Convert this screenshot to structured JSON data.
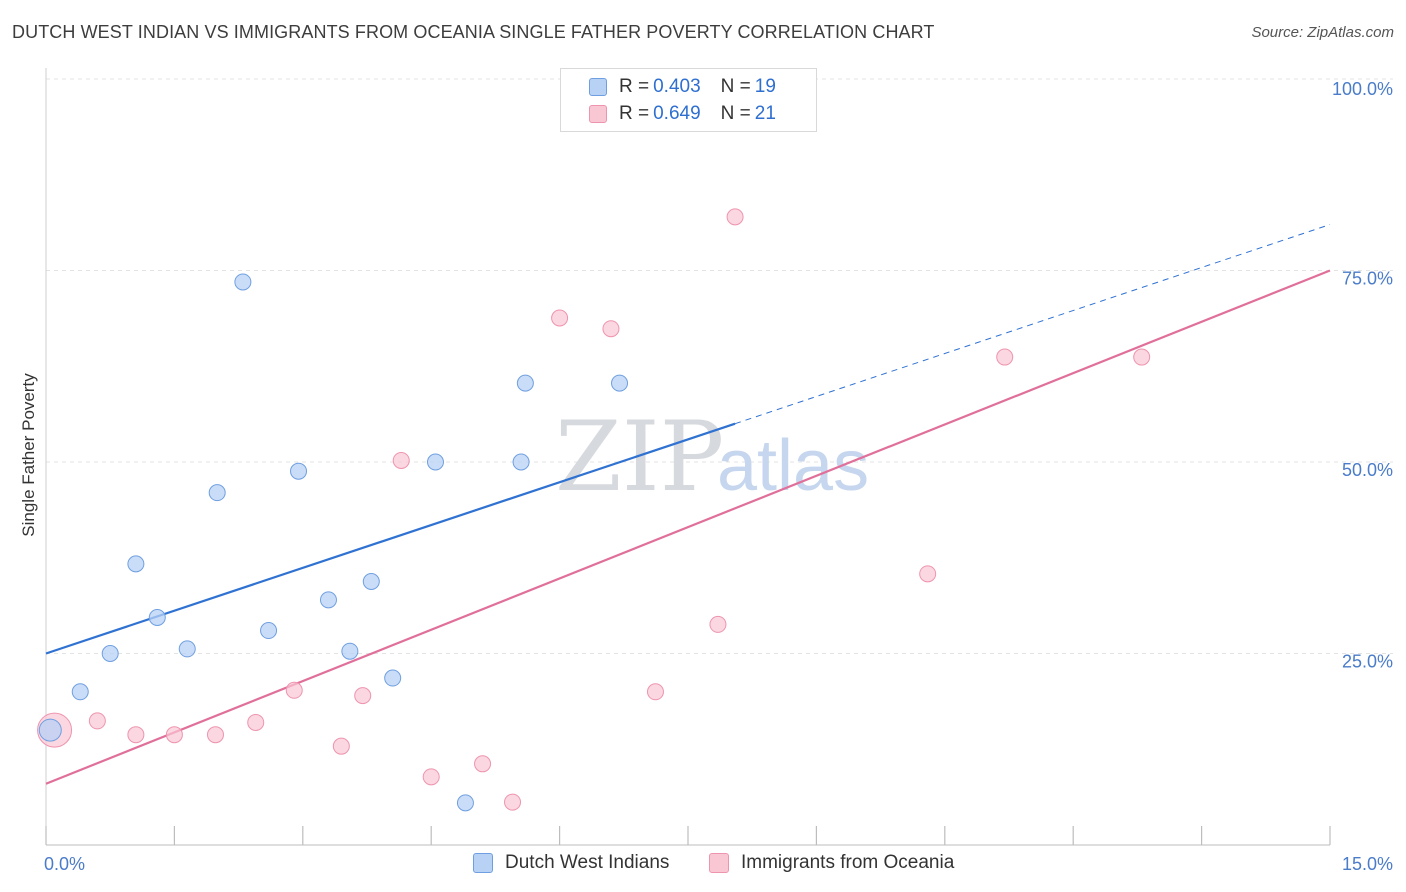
{
  "header": {
    "title": "DUTCH WEST INDIAN VS IMMIGRANTS FROM OCEANIA SINGLE FATHER POVERTY CORRELATION CHART",
    "source": "Source: ZipAtlas.com"
  },
  "legend": {
    "rows": [
      {
        "r_label": "R = ",
        "r_value": "0.403",
        "n_label": "N = ",
        "n_value": "19"
      },
      {
        "r_label": "R = ",
        "r_value": "0.649",
        "n_label": "N = ",
        "n_value": "21"
      }
    ]
  },
  "bottom_legend": {
    "series1": "Dutch West Indians",
    "series2": "Immigrants from Oceania"
  },
  "colors": {
    "blue_fill": "#b8d2f5",
    "blue_stroke": "#6f9fe0",
    "blue_line": "#2f72d2",
    "pink_fill": "#f9c6d4",
    "pink_stroke": "#ee94ae",
    "pink_line": "#e0709a",
    "tick_text": "#4a7cc9",
    "grid": "#e3e3e3"
  },
  "chart_data": {
    "type": "scatter",
    "xlabel": "",
    "ylabel": "Single Father Poverty",
    "xlim": [
      0,
      15
    ],
    "ylim": [
      0,
      100
    ],
    "x_tick_labels": [
      "0.0%",
      "15.0%"
    ],
    "y_tick_labels": [
      "25.0%",
      "50.0%",
      "75.0%",
      "100.0%"
    ],
    "y_ticks": [
      25,
      50,
      75,
      100
    ],
    "grid": true,
    "legend_position": "top-center",
    "watermark": {
      "zip": "ZIP",
      "atlas": "atlas"
    },
    "series": [
      {
        "name": "Dutch West Indians",
        "r": 0.403,
        "n": 19,
        "points": [
          [
            0.05,
            15.0
          ],
          [
            0.4,
            20.0
          ],
          [
            0.75,
            25.0
          ],
          [
            1.05,
            36.7
          ],
          [
            1.3,
            29.7
          ],
          [
            1.65,
            25.6
          ],
          [
            2.0,
            46.0
          ],
          [
            2.3,
            73.5
          ],
          [
            2.6,
            28.0
          ],
          [
            2.95,
            48.8
          ],
          [
            3.3,
            32.0
          ],
          [
            3.55,
            25.3
          ],
          [
            3.8,
            34.4
          ],
          [
            4.05,
            21.8
          ],
          [
            4.55,
            50.0
          ],
          [
            4.9,
            5.5
          ],
          [
            5.55,
            50.0
          ],
          [
            5.6,
            60.3
          ],
          [
            6.7,
            60.3
          ]
        ],
        "trend": {
          "x0": 0,
          "y0": 25.0,
          "x1": 8.05,
          "y1": 55.0,
          "dash_x1": 15.0,
          "dash_y1": 81.0
        }
      },
      {
        "name": "Immigrants from Oceania",
        "r": 0.649,
        "n": 21,
        "points": [
          [
            0.1,
            15.0
          ],
          [
            0.6,
            16.2
          ],
          [
            1.05,
            14.4
          ],
          [
            1.5,
            14.4
          ],
          [
            1.98,
            14.4
          ],
          [
            2.45,
            16.0
          ],
          [
            2.9,
            20.2
          ],
          [
            3.45,
            12.9
          ],
          [
            3.7,
            19.5
          ],
          [
            4.15,
            50.2
          ],
          [
            4.5,
            8.9
          ],
          [
            5.1,
            10.6
          ],
          [
            5.45,
            5.6
          ],
          [
            6.0,
            68.8
          ],
          [
            6.6,
            67.4
          ],
          [
            7.12,
            20.0
          ],
          [
            7.85,
            28.8
          ],
          [
            8.05,
            82.0
          ],
          [
            10.3,
            35.4
          ],
          [
            11.2,
            63.7
          ],
          [
            12.8,
            63.7
          ]
        ],
        "trend": {
          "x0": 0,
          "y0": 8.0,
          "x1": 15.0,
          "y1": 75.0
        }
      }
    ]
  }
}
